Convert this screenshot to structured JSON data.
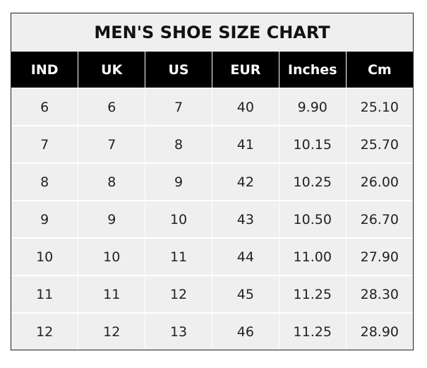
{
  "title": "MEN'S SHOE SIZE CHART",
  "headers": [
    "IND",
    "UK",
    "US",
    "EUR",
    "Inches",
    "Cm"
  ],
  "rows": [
    [
      "6",
      "6",
      "7",
      "40",
      "9.90",
      "25.10"
    ],
    [
      "7",
      "7",
      "8",
      "41",
      "10.15",
      "25.70"
    ],
    [
      "8",
      "8",
      "9",
      "42",
      "10.25",
      "26.00"
    ],
    [
      "9",
      "9",
      "10",
      "43",
      "10.50",
      "26.70"
    ],
    [
      "10",
      "10",
      "11",
      "44",
      "11.00",
      "27.90"
    ],
    [
      "11",
      "11",
      "12",
      "45",
      "11.25",
      "28.30"
    ],
    [
      "12",
      "12",
      "13",
      "46",
      "11.25",
      "28.90"
    ]
  ],
  "colors": {
    "header_bg": "#000000",
    "cell_bg": "#efefef",
    "grid": "#ffffff"
  }
}
